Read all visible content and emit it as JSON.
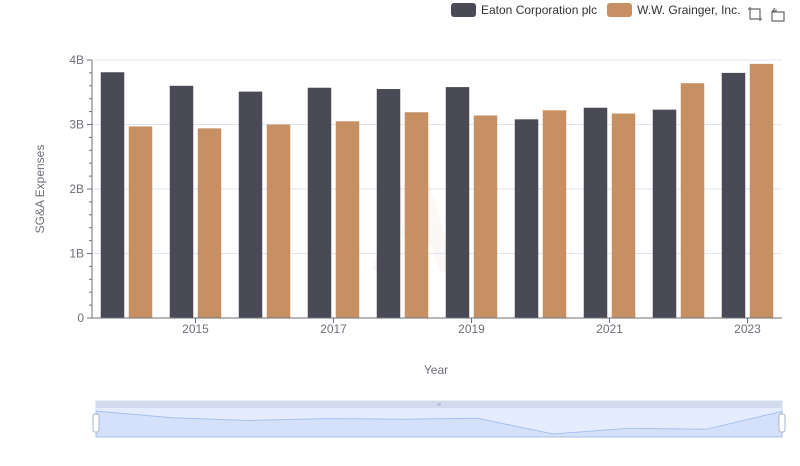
{
  "chart_data": {
    "type": "bar",
    "title": "",
    "xlabel": "Year",
    "ylabel": "SG&A Expenses",
    "x_tick_labels": [
      "2015",
      "2017",
      "2019",
      "2021",
      "2023"
    ],
    "y_tick_labels": [
      "0",
      "1B",
      "2B",
      "3B",
      "4B"
    ],
    "ylim": [
      0,
      4000000000
    ],
    "categories": [
      "2014",
      "2015",
      "2016",
      "2017",
      "2018",
      "2019",
      "2020",
      "2021",
      "2022",
      "2023"
    ],
    "series": [
      {
        "name": "Eaton Corporation plc",
        "color": "#4a4a56",
        "values": [
          3810000000,
          3600000000,
          3510000000,
          3570000000,
          3550000000,
          3580000000,
          3080000000,
          3260000000,
          3230000000,
          3800000000
        ]
      },
      {
        "name": "W.W. Grainger, Inc.",
        "color": "#c69063",
        "values": [
          2970000000,
          2940000000,
          3000000000,
          3050000000,
          3190000000,
          3140000000,
          3220000000,
          3170000000,
          3640000000,
          3940000000
        ]
      }
    ],
    "grid": true,
    "legend_position": "top-right"
  },
  "toolbox": {
    "zoom_icon": "zoom-icon",
    "restore_icon": "restore-icon"
  },
  "datazoom": {
    "range": [
      0,
      100
    ]
  },
  "colors": {
    "axis": "#6e7079",
    "grid": "#e0e6f1",
    "slider_fill": "#d4e0fb",
    "slider_border": "#c9d5ef"
  }
}
